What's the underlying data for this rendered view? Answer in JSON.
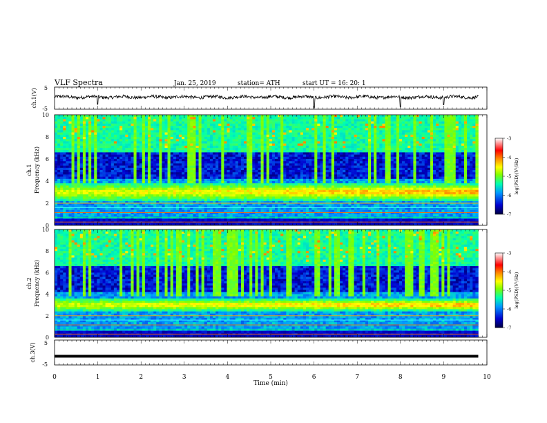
{
  "header": {
    "title": "VLF  Spectra",
    "date": "Jan. 25, 2019",
    "station": "station= ATH",
    "start": "start  UT  =    16: 20: 1"
  },
  "chart_data": [
    {
      "type": "line",
      "name": "ch1-waveform",
      "ylabel": "ch.1(V)",
      "ylim": [
        -5,
        5
      ],
      "yticks": [
        "5",
        "-5"
      ],
      "x_range_min": [
        0,
        9.8
      ],
      "baseline_v": 0.5,
      "noise_amplitude_v": 1.2,
      "spikes": [
        {
          "t": 1.0,
          "v": -2.8
        },
        {
          "t": 6.0,
          "v": -4.5
        },
        {
          "t": 8.0,
          "v": -4.0
        },
        {
          "t": 9.0,
          "v": -3.0
        }
      ]
    },
    {
      "type": "heatmap",
      "name": "ch1-spectrogram",
      "ylabel": "ch.1\nFrequency  (kHz)",
      "ylim": [
        0,
        10
      ],
      "yticks": [
        "0",
        "2",
        "4",
        "6",
        "8",
        "10"
      ],
      "x_range_min": [
        0,
        9.8
      ],
      "enhanced_band_khz": [
        2.3,
        3.7
      ],
      "colorbar": {
        "label": "log(PSD)(V²/Hz)",
        "ticks": [
          "-3",
          "-4",
          "-5",
          "-6",
          "-7"
        ],
        "range": [
          -7,
          -3
        ],
        "colors": [
          "#000060",
          "#0000ff",
          "#00c8ff",
          "#00ff80",
          "#ffff00",
          "#ff8000",
          "#ff0000",
          "#ffffff"
        ]
      }
    },
    {
      "type": "heatmap",
      "name": "ch2-spectrogram",
      "ylabel": "ch.2\nFrequency  (kHz)",
      "ylim": [
        0,
        10
      ],
      "yticks": [
        "0",
        "2",
        "4",
        "6",
        "8",
        "10"
      ],
      "x_range_min": [
        0,
        9.8
      ],
      "enhanced_band_khz": [
        2.5,
        3.5
      ],
      "colorbar": {
        "label": "log(PSD)(V²/Hz)",
        "ticks": [
          "-3",
          "-4",
          "-5",
          "-6",
          "-7"
        ],
        "range": [
          -7,
          -3
        ],
        "colors": [
          "#000060",
          "#0000ff",
          "#00c8ff",
          "#00ff80",
          "#ffff00",
          "#ff8000",
          "#ff0000",
          "#ffffff"
        ]
      }
    },
    {
      "type": "line",
      "name": "ch3-waveform",
      "ylabel": "ch.3(V)",
      "ylim": [
        -5,
        5
      ],
      "yticks": [
        "5",
        "0",
        "-5"
      ],
      "x_range_min": [
        0,
        9.8
      ],
      "baseline_v": -1.5
    }
  ],
  "xaxis": {
    "label": "Time  (min)",
    "range": [
      0,
      10
    ],
    "ticks": [
      "0",
      "1",
      "2",
      "3",
      "4",
      "5",
      "6",
      "7",
      "8",
      "9",
      "10"
    ]
  },
  "colors": {
    "trace": "#000000",
    "axis": "#000000"
  }
}
